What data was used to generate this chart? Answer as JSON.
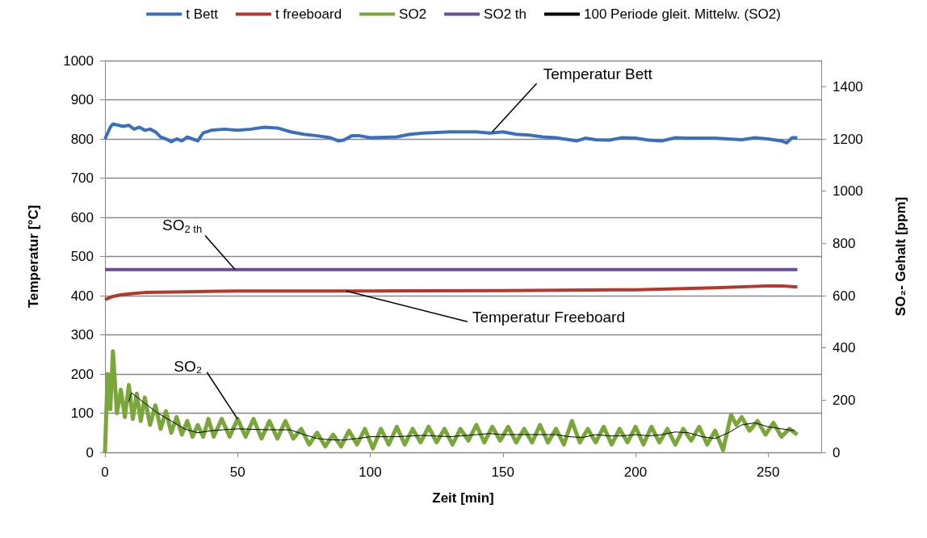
{
  "chart_data": {
    "type": "line",
    "xlabel": "Zeit [min]",
    "ylabel": "Temperatur [°C]",
    "y2label": "SO₂- Gehalt [ppm]",
    "xlim": [
      0,
      270
    ],
    "xticks": [
      0,
      50,
      100,
      150,
      200,
      250
    ],
    "ylim": [
      0,
      1000
    ],
    "yticks": [
      0,
      100,
      200,
      300,
      400,
      500,
      600,
      700,
      800,
      900,
      1000
    ],
    "y2lim": [
      0,
      1500
    ],
    "y2ticks": [
      0,
      200,
      400,
      600,
      800,
      1000,
      1200,
      1400
    ],
    "grid": "y",
    "legend": "top",
    "marker": "none",
    "line_style": "solid",
    "series": [
      {
        "name": "t Bett",
        "color": "#3a6fbe",
        "x": [
          0,
          2,
          3,
          5,
          7,
          9,
          11,
          13,
          15,
          17,
          19,
          21,
          23,
          25,
          27,
          29,
          31,
          33,
          35,
          37,
          40,
          45,
          50,
          55,
          60,
          65,
          70,
          75,
          80,
          85,
          88,
          90,
          93,
          96,
          100,
          110,
          115,
          120,
          130,
          140,
          145,
          150,
          155,
          160,
          165,
          170,
          175,
          178,
          181,
          185,
          190,
          195,
          200,
          205,
          210,
          215,
          220,
          230,
          240,
          245,
          250,
          255,
          257,
          259,
          261
        ],
        "values": [
          800,
          830,
          838,
          835,
          832,
          835,
          825,
          830,
          822,
          825,
          818,
          805,
          800,
          793,
          800,
          795,
          805,
          800,
          795,
          815,
          822,
          825,
          822,
          825,
          830,
          828,
          818,
          812,
          808,
          803,
          795,
          797,
          808,
          808,
          803,
          805,
          812,
          815,
          818,
          818,
          815,
          818,
          812,
          810,
          805,
          803,
          798,
          795,
          802,
          798,
          797,
          803,
          802,
          797,
          795,
          803,
          802,
          802,
          798,
          803,
          800,
          795,
          790,
          803,
          803
        ]
      },
      {
        "name": "t freeboard",
        "color": "#b5372f",
        "x": [
          0,
          3,
          6,
          10,
          15,
          20,
          30,
          50,
          100,
          150,
          200,
          230,
          250,
          255,
          261
        ],
        "values": [
          390,
          398,
          402,
          405,
          408,
          409,
          410,
          412,
          412,
          413,
          415,
          420,
          425,
          425,
          422
        ]
      },
      {
        "name": "SO2",
        "color": "#7ba63a",
        "axis": "y2",
        "x": [
          0,
          1,
          2,
          3,
          4.5,
          6,
          7.5,
          9,
          10.5,
          12,
          13.5,
          15,
          17,
          19,
          21,
          23,
          25,
          27,
          29,
          31,
          33,
          35,
          37,
          39,
          41,
          44,
          47,
          50,
          53,
          56,
          59,
          62,
          65,
          68,
          71,
          74,
          77,
          80,
          83,
          86,
          89,
          92,
          95,
          98,
          101,
          104,
          107,
          110,
          113,
          116,
          119,
          122,
          125,
          128,
          131,
          134,
          137,
          140,
          143,
          146,
          149,
          152,
          155,
          158,
          161,
          164,
          167,
          170,
          173,
          176,
          179,
          182,
          185,
          188,
          191,
          194,
          197,
          200,
          203,
          206,
          209,
          212,
          215,
          218,
          221,
          224,
          227,
          230,
          233,
          236,
          238,
          240,
          243,
          246,
          249,
          252,
          255,
          258,
          261
        ],
        "values": [
          0,
          300,
          165,
          387,
          150,
          240,
          135,
          258,
          128,
          225,
          120,
          210,
          105,
          180,
          90,
          158,
          75,
          135,
          68,
          120,
          60,
          105,
          60,
          128,
          60,
          128,
          60,
          128,
          60,
          128,
          53,
          120,
          53,
          120,
          53,
          90,
          30,
          75,
          23,
          68,
          23,
          83,
          30,
          90,
          15,
          90,
          30,
          98,
          30,
          90,
          38,
          98,
          38,
          90,
          30,
          90,
          45,
          105,
          38,
          98,
          45,
          98,
          38,
          90,
          38,
          105,
          38,
          90,
          30,
          120,
          38,
          90,
          38,
          98,
          30,
          90,
          38,
          98,
          30,
          98,
          38,
          90,
          30,
          90,
          45,
          98,
          30,
          83,
          8,
          143,
          105,
          135,
          83,
          120,
          68,
          113,
          60,
          90,
          68
        ]
      },
      {
        "name": "SO2 th",
        "color": "#6b4c9a",
        "axis": "y2",
        "x": [
          0,
          261
        ],
        "values": [
          700,
          700
        ]
      },
      {
        "name": "100 Periode gleit. Mittelw. (SO2)",
        "color": "#000000",
        "axis": "y2",
        "x": [
          9,
          10,
          15,
          20,
          25,
          30,
          35,
          40,
          45,
          50,
          60,
          70,
          75,
          80,
          85,
          90,
          95,
          100,
          110,
          120,
          130,
          140,
          145,
          150,
          160,
          170,
          175,
          180,
          185,
          190,
          195,
          200,
          205,
          210,
          215,
          220,
          225,
          230,
          235,
          240,
          245,
          250,
          255,
          260
        ],
        "values": [
          195,
          228,
          188,
          150,
          120,
          90,
          75,
          83,
          87,
          90,
          87,
          86,
          68,
          53,
          48,
          47,
          53,
          60,
          60,
          65,
          60,
          68,
          72,
          68,
          68,
          68,
          60,
          57,
          68,
          63,
          63,
          68,
          63,
          68,
          78,
          75,
          60,
          53,
          75,
          105,
          113,
          98,
          90,
          83
        ]
      }
    ],
    "annotations": [
      {
        "text": "Temperatur Bett",
        "x": 146,
        "y": 818
      },
      {
        "text": "SO$_{2 th}$",
        "x": 49,
        "y": 467
      },
      {
        "text": "Temperatur Freeboard",
        "x": 91,
        "y": 412
      },
      {
        "text": "SO₂",
        "x": 50,
        "y": 85
      }
    ]
  }
}
